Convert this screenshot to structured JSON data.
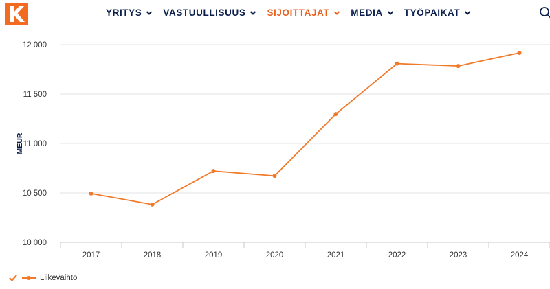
{
  "nav": {
    "items": [
      {
        "label": "YRITYS",
        "active": false
      },
      {
        "label": "VASTUULLISUUS",
        "active": false
      },
      {
        "label": "SIJOITTAJAT",
        "active": true
      },
      {
        "label": "MEDIA",
        "active": false
      },
      {
        "label": "TYÖPAIKAT",
        "active": false
      }
    ]
  },
  "colors": {
    "brand": "#f26b21",
    "nav_text": "#0b1f4d",
    "nav_active": "#e8611d",
    "line": "#f07a2a"
  },
  "icons": {
    "logo": "k-logo",
    "search": "search-icon",
    "chevron": "chevron-down-icon",
    "legend_check": "check-icon"
  },
  "chart_data": {
    "type": "line",
    "ylabel": "MEUR",
    "ylim": [
      10000,
      12000
    ],
    "y_ticks": [
      10000,
      10500,
      11000,
      11500,
      12000
    ],
    "y_tick_labels": [
      "10 000",
      "10 500",
      "11 000",
      "11 500",
      "12 000"
    ],
    "categories": [
      "2017",
      "2018",
      "2019",
      "2020",
      "2021",
      "2022",
      "2023",
      "2024"
    ],
    "series": [
      {
        "name": "Liikevaihto",
        "values": [
          10494,
          10383,
          10721,
          10672,
          11298,
          11808,
          11784,
          11917
        ]
      }
    ],
    "grid": true,
    "legend": "bottom-left"
  }
}
